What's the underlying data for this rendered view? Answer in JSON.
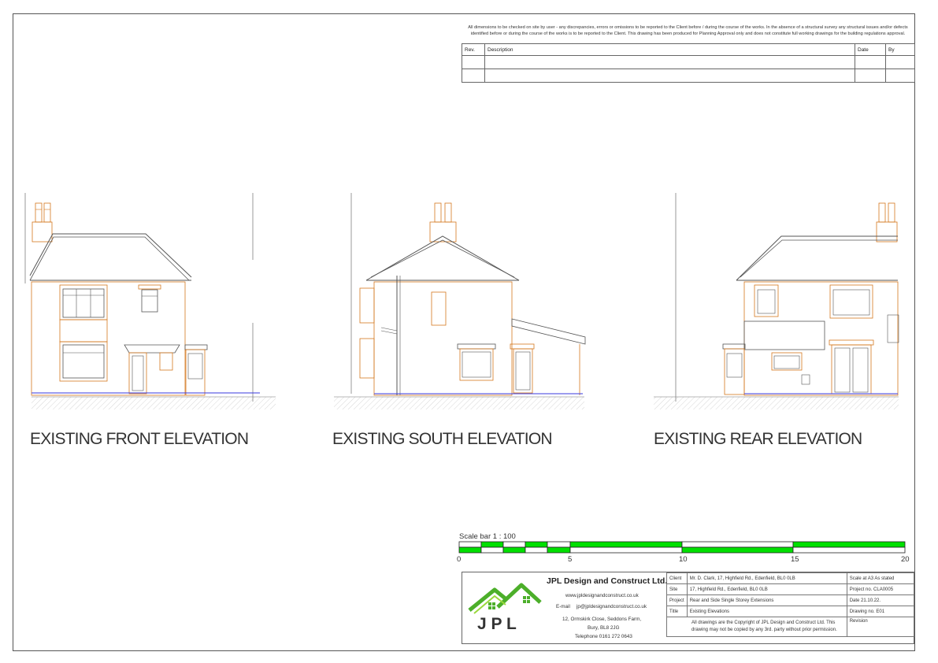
{
  "notes": {
    "line1": "All dimensions to be checked on site by user - any discrepancies, errors or omissions to be reported to the Client before / during the course of the works.  In the absence of a structural survey any structural issues and/or defects",
    "line2": "identified before or during the course of the works is to be reported to the Client.  This drawing has been produced for Planning Approval only and does not constitute full working drawings for the building regulations approval."
  },
  "revision_table": {
    "headers": [
      "Rev.",
      "Description",
      "Date",
      "By"
    ],
    "rows": [
      [
        "",
        "",
        "",
        ""
      ],
      [
        "",
        "",
        "",
        ""
      ]
    ]
  },
  "elevations": [
    {
      "title": "EXISTING FRONT ELEVATION"
    },
    {
      "title": "EXISTING SOUTH ELEVATION"
    },
    {
      "title": "EXISTING REAR ELEVATION"
    }
  ],
  "scale_bar": {
    "label": "Scale bar 1 : 100",
    "ticks": [
      "0",
      "5",
      "10",
      "15",
      "20"
    ],
    "fill_color": "#00e000"
  },
  "company": {
    "logo_text": "J P L",
    "name": "JPL Design and Construct Ltd.",
    "website": "www.jpldesignandconstruct.co.uk",
    "email_label": "E-mail",
    "email": "jp@jpldesignandconstruct.co.uk",
    "address1": "12, Ormskirk Close, Seddons Farm,",
    "address2": "Bury, BL8 2JG",
    "telephone": "Telephone 0161 272 0643"
  },
  "title_block": {
    "client_label": "Client",
    "client": "Mr. D. Clark, 17, Highfield Rd., Edenfield, BL0 0LB",
    "site_label": "Site",
    "site": "17, Highfield Rd., Edenfield, BL0 0LB",
    "project_label": "Project",
    "project": "Rear and Side Single Storey Extensions",
    "title_label": "Title",
    "title": "Existing Elevations",
    "copyright1": "All drawings are the Copyright of JPL Design and Construct Ltd.  This",
    "copyright2": "drawing may not be copied by any 3rd. party without prior permission.",
    "scale": "Scale at A3  As stated",
    "project_no": "Project no.  CLA0005",
    "date": "Date  21.10.22.",
    "drawing_no": "Drawing no. E01",
    "revision": "Revision"
  },
  "colors": {
    "brick": "#d4781e",
    "outline": "#555555",
    "ground_line": "#3a3adf",
    "logo_green": "#4caf2a"
  }
}
